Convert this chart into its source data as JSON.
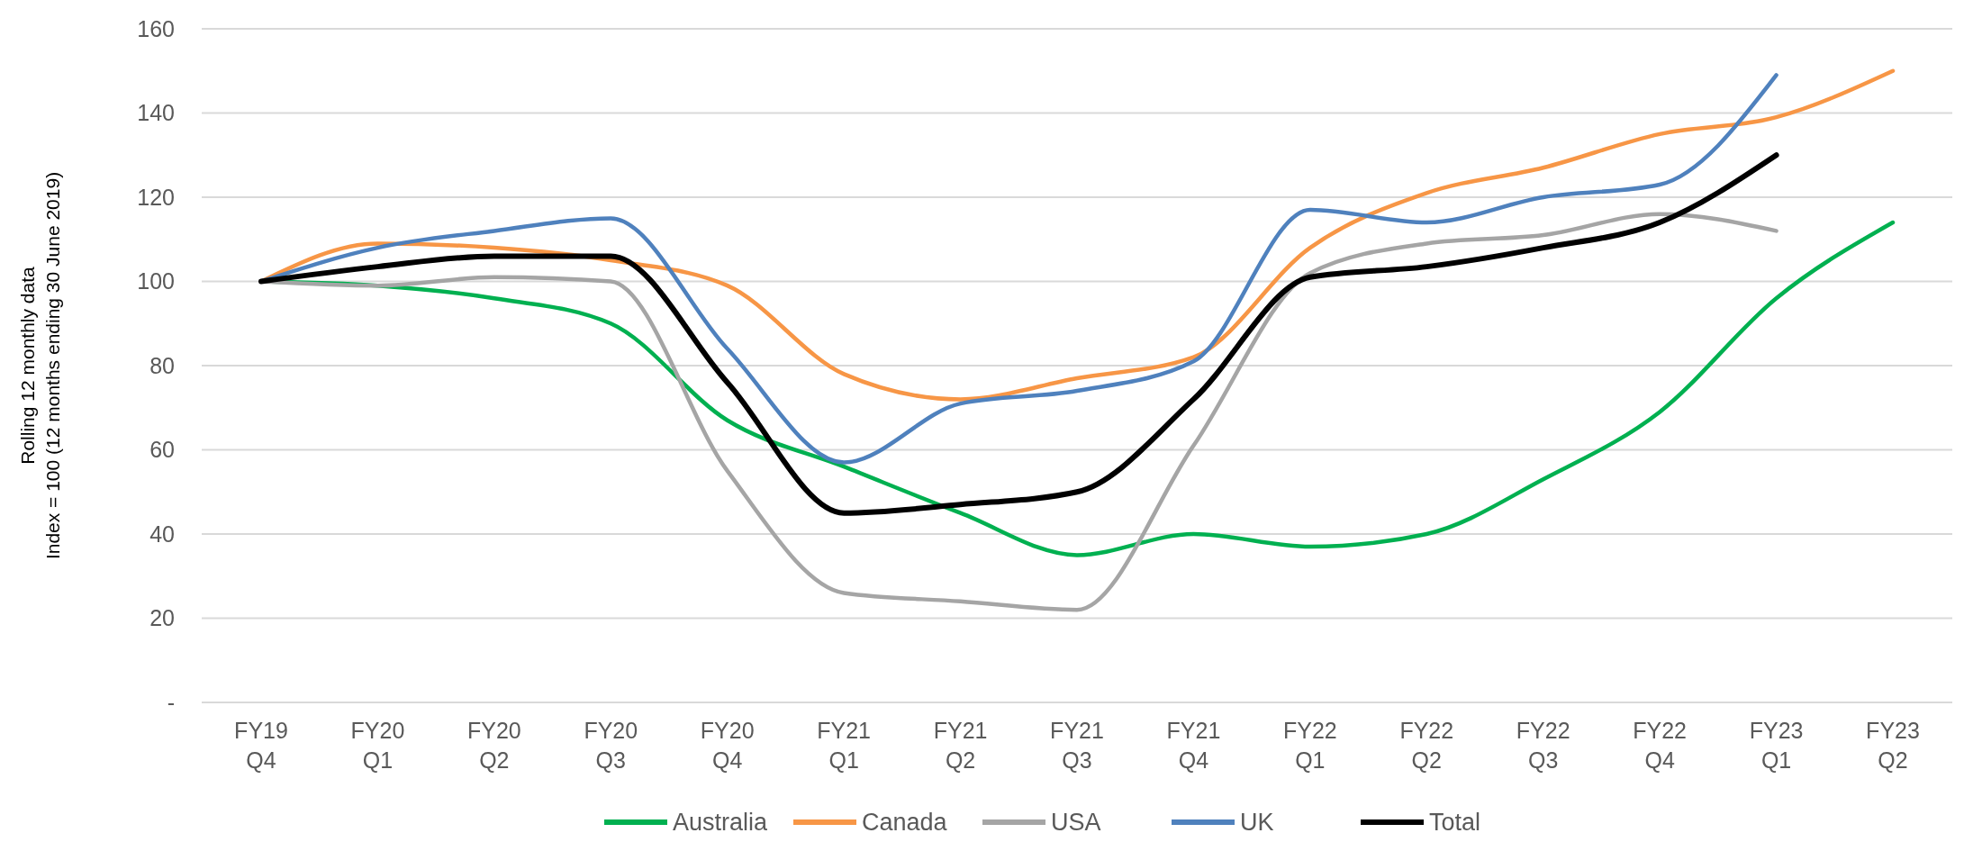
{
  "chart_data": {
    "type": "line",
    "ylabel": "Rolling 12 monthly data\nIndex = 100 (12 months ending 30 June 2019)",
    "categories": [
      "FY19 Q4",
      "FY20 Q1",
      "FY20 Q2",
      "FY20 Q3",
      "FY20 Q4",
      "FY21 Q1",
      "FY21 Q2",
      "FY21 Q3",
      "FY21 Q4",
      "FY22 Q1",
      "FY22 Q2",
      "FY22 Q3",
      "FY22 Q4",
      "FY23 Q1",
      "FY23 Q2"
    ],
    "series": [
      {
        "name": "Australia",
        "color": "#00b050",
        "values": [
          100,
          99,
          96,
          90,
          67,
          56,
          45,
          35,
          40,
          37,
          40,
          53,
          69,
          96,
          114
        ]
      },
      {
        "name": "Canada",
        "color": "#f79646",
        "values": [
          100,
          109,
          108,
          105,
          99,
          78,
          72,
          77,
          82,
          108,
          121,
          127,
          135,
          139,
          150
        ]
      },
      {
        "name": "USA",
        "color": "#a5a5a5",
        "values": [
          100,
          99,
          101,
          100,
          55,
          26,
          24,
          22,
          61,
          102,
          109,
          111,
          116,
          112,
          null
        ]
      },
      {
        "name": "UK",
        "color": "#4f81bd",
        "values": [
          100,
          108,
          112,
          115,
          84,
          57,
          71,
          74,
          81,
          117,
          114,
          120,
          123,
          149,
          null
        ]
      },
      {
        "name": "Total",
        "color": "#000000",
        "values": [
          100,
          103.5,
          106,
          106,
          76,
          45,
          47,
          50,
          72,
          101,
          103.5,
          108,
          114,
          130,
          null
        ]
      }
    ],
    "ylim": [
      0,
      160
    ],
    "yticks": [
      {
        "value": 0,
        "label": "-"
      },
      20,
      40,
      60,
      80,
      100,
      120,
      140,
      160
    ],
    "grid": "y",
    "legend": "bottom",
    "line_style": "solid",
    "marker": "none"
  }
}
